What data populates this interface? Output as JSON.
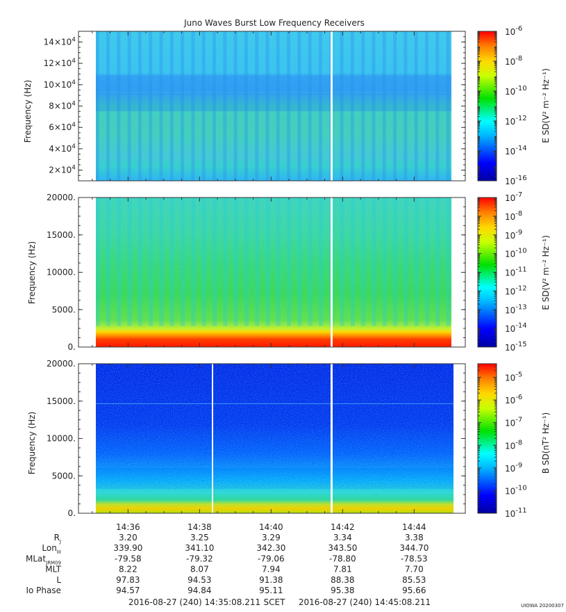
{
  "chart_data": {
    "title": "Juno Waves Burst Low Frequency Receivers",
    "type": "heatmap",
    "x_axis": {
      "tick_labels": [
        "14:36",
        "14:38",
        "14:40",
        "14:42",
        "14:44"
      ],
      "tick_minutes": [
        36,
        38,
        40,
        42,
        44
      ],
      "range_minutes": [
        35.1,
        45.1
      ]
    },
    "panels": [
      {
        "ylabel": "Frequency (Hz)",
        "ylim": [
          10000,
          150000
        ],
        "y_ticks": [
          {
            "value": 20000,
            "mant": "2×10",
            "exp": "4"
          },
          {
            "value": 40000,
            "mant": "4×10",
            "exp": "4"
          },
          {
            "value": 60000,
            "mant": "6×10",
            "exp": "4"
          },
          {
            "value": 80000,
            "mant": "8×10",
            "exp": "4"
          },
          {
            "value": 100000,
            "mant": "10×10",
            "exp": "4"
          },
          {
            "value": 120000,
            "mant": "12×10",
            "exp": "4"
          },
          {
            "value": 140000,
            "mant": "14×10",
            "exp": "4"
          }
        ],
        "colorbar_label": "E SD(V² m⁻² Hz⁻¹)",
        "colorbar_exponents": [
          "-6",
          "-8",
          "-10",
          "-12",
          "-14",
          "-16"
        ],
        "colorbar_range_exp": [
          -16,
          -6
        ]
      },
      {
        "ylabel": "Frequency (Hz)",
        "ylim": [
          0,
          20000
        ],
        "y_ticks": [
          {
            "value": 0,
            "label": "0."
          },
          {
            "value": 5000,
            "label": "5000."
          },
          {
            "value": 10000,
            "label": "10000."
          },
          {
            "value": 15000,
            "label": "15000."
          },
          {
            "value": 20000,
            "label": "20000."
          }
        ],
        "colorbar_label": "E SD(V² m⁻² Hz⁻¹)",
        "colorbar_exponents": [
          "-7",
          "-8",
          "-9",
          "-10",
          "-11",
          "-12",
          "-13",
          "-14",
          "-15"
        ],
        "colorbar_range_exp": [
          -15,
          -7
        ]
      },
      {
        "ylabel": "Frequency (Hz)",
        "ylim": [
          0,
          20000
        ],
        "y_ticks": [
          {
            "value": 0,
            "label": "0."
          },
          {
            "value": 5000,
            "label": "5000."
          },
          {
            "value": 10000,
            "label": "10000."
          },
          {
            "value": 15000,
            "label": "15000."
          },
          {
            "value": 20000,
            "label": "20000."
          }
        ],
        "colorbar_label": "B SD(nT² Hz⁻¹)",
        "colorbar_exponents": [
          "-5",
          "-6",
          "-7",
          "-8",
          "-9",
          "-10",
          "-11"
        ],
        "colorbar_range_exp": [
          -11,
          -4.4
        ]
      }
    ],
    "ephemeris": {
      "rows": [
        {
          "label": "R",
          "sub": "J",
          "values": [
            "3.20",
            "3.25",
            "3.29",
            "3.34",
            "3.38"
          ]
        },
        {
          "label": "Lon",
          "sub": "III",
          "values": [
            "339.90",
            "341.10",
            "342.30",
            "343.50",
            "344.70"
          ]
        },
        {
          "label": "MLat",
          "sub": "JRM09",
          "values": [
            "-79.58",
            "-79.32",
            "-79.06",
            "-78.80",
            "-78.53"
          ]
        },
        {
          "label": "MLT",
          "sub": "",
          "values": [
            "8.22",
            "8.07",
            "7.94",
            "7.81",
            "7.70"
          ]
        },
        {
          "label": "L",
          "sub": "",
          "values": [
            "97.83",
            "94.53",
            "91.38",
            "88.38",
            "85.53"
          ]
        },
        {
          "label": "Io Phase",
          "sub": "",
          "values": [
            "94.57",
            "94.84",
            "95.11",
            "95.38",
            "95.66"
          ]
        }
      ]
    },
    "time_range": {
      "start": "2016-08-27 (240) 14:35:08.211",
      "label": "SCET",
      "end": "2016-08-27 (240) 14:45:08.211"
    },
    "footer_tag": "UIOWA 20200307"
  }
}
